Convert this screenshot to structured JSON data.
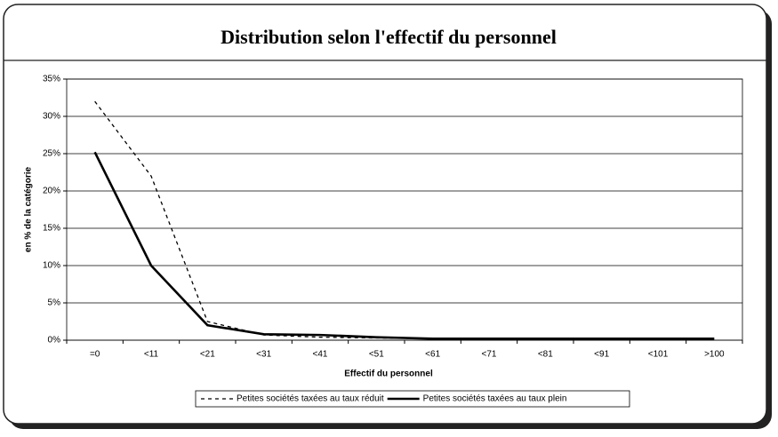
{
  "chart_data": {
    "type": "line",
    "title": "Distribution selon l'effectif du personnel",
    "xlabel": "Effectif du personnel",
    "ylabel": "en % de la catégorie",
    "categories": [
      "=0",
      "<11",
      "<21",
      "<31",
      "<41",
      "<51",
      "<61",
      "<71",
      "<81",
      "<91",
      "<101",
      ">100"
    ],
    "series": [
      {
        "name": "Petites sociétés taxées au taux réduit",
        "color": "#000000",
        "dash": true,
        "values": [
          32,
          22,
          2.5,
          0.7,
          0.4,
          0.3,
          0.2,
          0.2,
          0.2,
          0.2,
          0.2,
          0.2
        ]
      },
      {
        "name": "Petites sociétés taxées au taux plein",
        "color": "#000000",
        "dash": false,
        "values": [
          25.2,
          10,
          2,
          0.8,
          0.7,
          0.4,
          0.2,
          0.2,
          0.2,
          0.2,
          0.2,
          0.2
        ]
      }
    ],
    "ylim": [
      0,
      35
    ],
    "yticks": [
      {
        "value": 0,
        "label": "0%"
      },
      {
        "value": 5,
        "label": "5%"
      },
      {
        "value": 10,
        "label": "10%"
      },
      {
        "value": 15,
        "label": "15%"
      },
      {
        "value": 20,
        "label": "20%"
      },
      {
        "value": 25,
        "label": "25%"
      },
      {
        "value": 30,
        "label": "30%"
      },
      {
        "value": 35,
        "label": "35%"
      }
    ],
    "grid": true,
    "legend": "bottom"
  }
}
